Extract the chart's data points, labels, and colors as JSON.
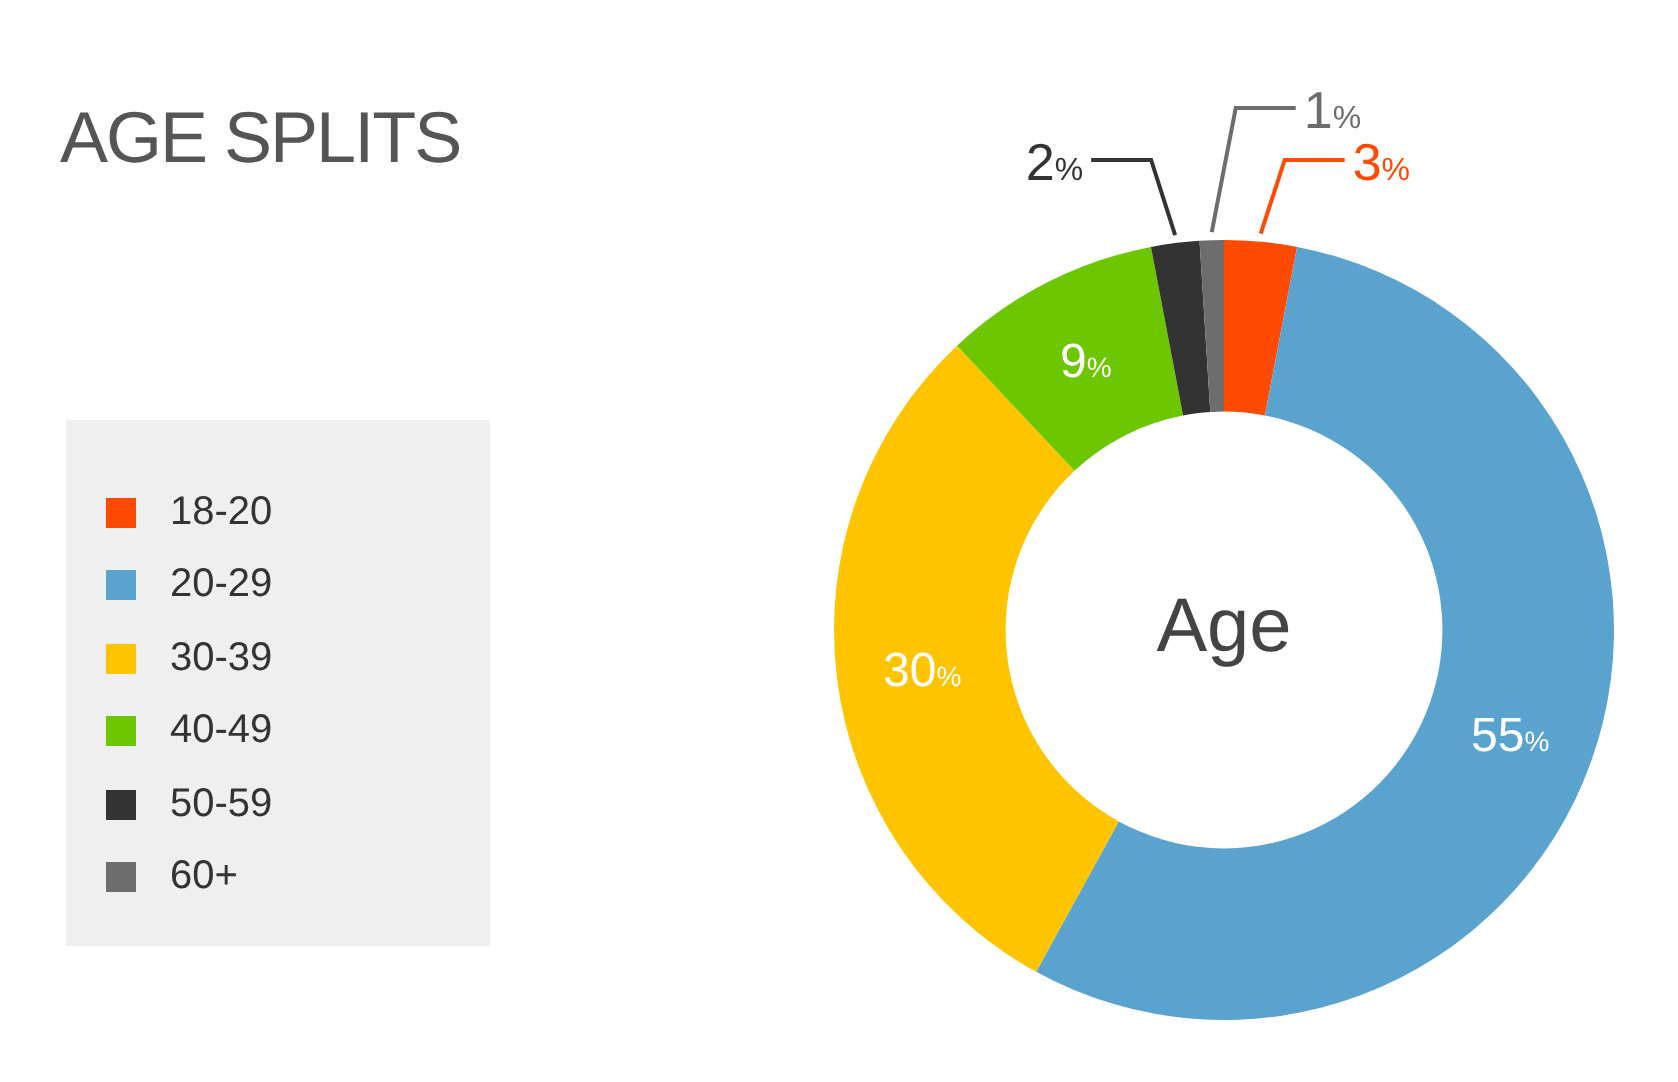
{
  "chart_data": {
    "type": "donut",
    "title": "AGE SPLITS",
    "categories": [
      "18-20",
      "20-29",
      "30-39",
      "40-49",
      "50-59",
      "60+"
    ],
    "values": [
      3,
      55,
      30,
      9,
      2,
      1
    ],
    "value_labels": [
      "3%",
      "55%",
      "30%",
      "9%",
      "2%",
      "1%"
    ],
    "colors": [
      "#fe4a03",
      "#5ba3cf",
      "#ffc400",
      "#6cc600",
      "#333333",
      "#6d6d6d"
    ],
    "legend": "left",
    "annotations": [
      "Age"
    ]
  }
}
